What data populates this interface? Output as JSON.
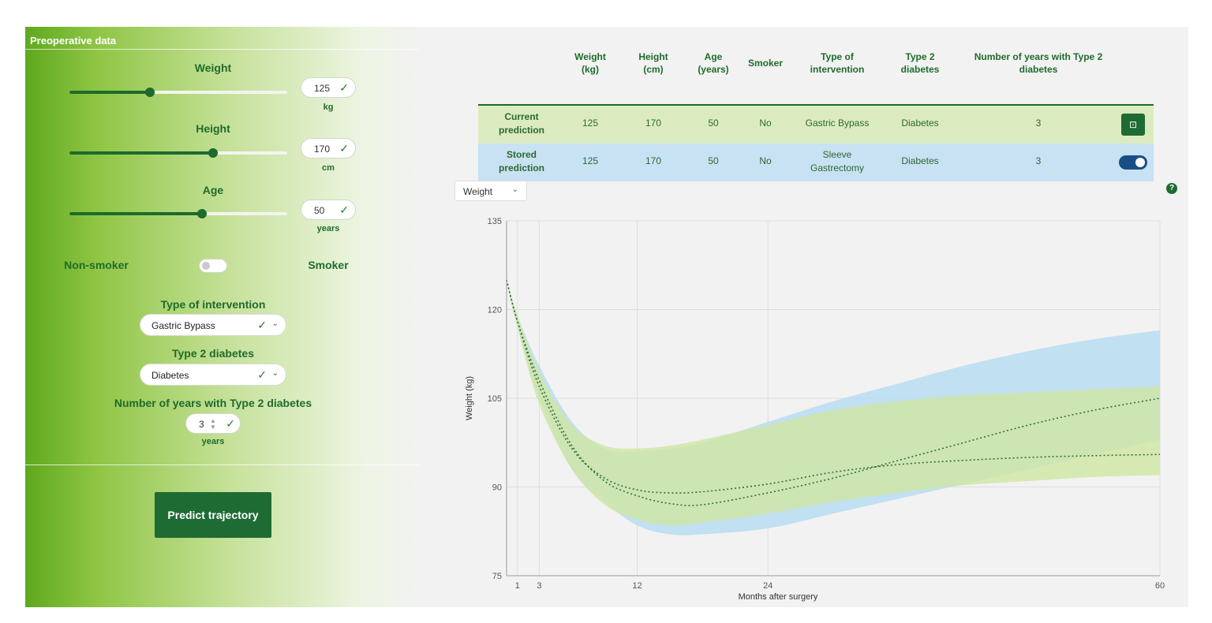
{
  "left_panel": {
    "title": "Preoperative data",
    "weight": {
      "label": "Weight",
      "value": "125",
      "unit": "kg",
      "level": 0.37
    },
    "height": {
      "label": "Height",
      "value": "170",
      "unit": "cm",
      "level": 0.66
    },
    "age": {
      "label": "Age",
      "value": "50",
      "unit": "years",
      "level": 0.61
    },
    "smoking": {
      "left_label": "Non-smoker",
      "right_label": "Smoker",
      "state": "off"
    },
    "intervention": {
      "label": "Type of intervention",
      "value": "Gastric Bypass"
    },
    "diabetes": {
      "label": "Type 2 diabetes",
      "value": "Diabetes"
    },
    "years_diabetes": {
      "label": "Number of years with Type 2 diabetes",
      "value": "3",
      "unit": "years"
    },
    "predict_button": "Predict trajectory"
  },
  "table": {
    "headers": [
      [
        "Weight",
        "(kg)"
      ],
      [
        "Height",
        "(cm)"
      ],
      [
        "Age",
        "(years)"
      ],
      [
        "Smoker"
      ],
      [
        "Type of",
        "intervention"
      ],
      [
        "Type 2",
        "diabetes"
      ],
      [
        "Number of years with Type 2",
        "diabetes"
      ]
    ],
    "rows": [
      {
        "label": [
          "Current",
          "prediction"
        ],
        "cells": [
          "125",
          "170",
          "50",
          "No",
          "Gastric Bypass",
          "Diabetes",
          "3"
        ],
        "color": "#dcebbf"
      },
      {
        "label": [
          "Stored",
          "prediction"
        ],
        "cells": [
          "125",
          "170",
          "50",
          "No",
          "Sleeve Gastrectomy",
          "Diabetes",
          "3"
        ],
        "color": "#c8e1f3"
      }
    ]
  },
  "metric_select": {
    "value": "Weight"
  },
  "help_icon": "?",
  "colors": {
    "brand_green": "#1f6b34",
    "current_band": "#cfe6a2",
    "stored_band": "#b9ddf2",
    "toggle_blue": "#174e86"
  },
  "chart_data": {
    "type": "line",
    "xlabel": "Months after surgery",
    "ylabel": "Weight (kg)",
    "xlim": [
      0,
      60
    ],
    "ylim": [
      75,
      135
    ],
    "xticks": [
      1,
      3,
      12,
      24,
      60
    ],
    "yticks": [
      75,
      90,
      105,
      120,
      135
    ],
    "grid": true,
    "series": [
      {
        "color": "#2f6e3a",
        "style": "dashed",
        "band_color": "#b9ddf2",
        "x": [
          0,
          1,
          3,
          6,
          9,
          12,
          15,
          18,
          24,
          30,
          36,
          42,
          48,
          54,
          60
        ],
        "y": [
          125,
          118,
          108,
          97,
          91,
          88.5,
          87.2,
          87,
          89,
          91.5,
          94.5,
          97.5,
          100.5,
          103,
          105
        ],
        "lower": [
          125,
          117,
          105,
          93,
          87.5,
          83.5,
          82,
          82,
          83,
          85.5,
          88,
          90.5,
          93,
          95.5,
          98
        ],
        "upper": [
          125,
          119,
          110.5,
          101,
          96.5,
          96,
          96.5,
          97.5,
          101,
          104.5,
          107.5,
          110.5,
          113,
          115,
          116.5
        ]
      },
      {
        "color": "#2f6e3a",
        "style": "dashed",
        "band_color": "#cfe6a2",
        "x": [
          0,
          1,
          3,
          6,
          9,
          12,
          15,
          18,
          24,
          30,
          36,
          42,
          48,
          54,
          60
        ],
        "y": [
          125,
          118,
          107,
          96.5,
          91.5,
          89.5,
          89,
          89.2,
          90.5,
          92.5,
          93.8,
          94.5,
          95,
          95.3,
          95.5
        ],
        "lower": [
          125,
          117,
          104,
          93,
          87,
          84.5,
          83.5,
          84,
          85.5,
          87.5,
          89,
          90.3,
          91,
          91.7,
          92
        ],
        "upper": [
          125,
          119,
          109.5,
          100.5,
          97,
          96.5,
          97,
          98,
          100.5,
          103,
          104.5,
          105.5,
          106,
          106.5,
          107
        ]
      }
    ]
  }
}
